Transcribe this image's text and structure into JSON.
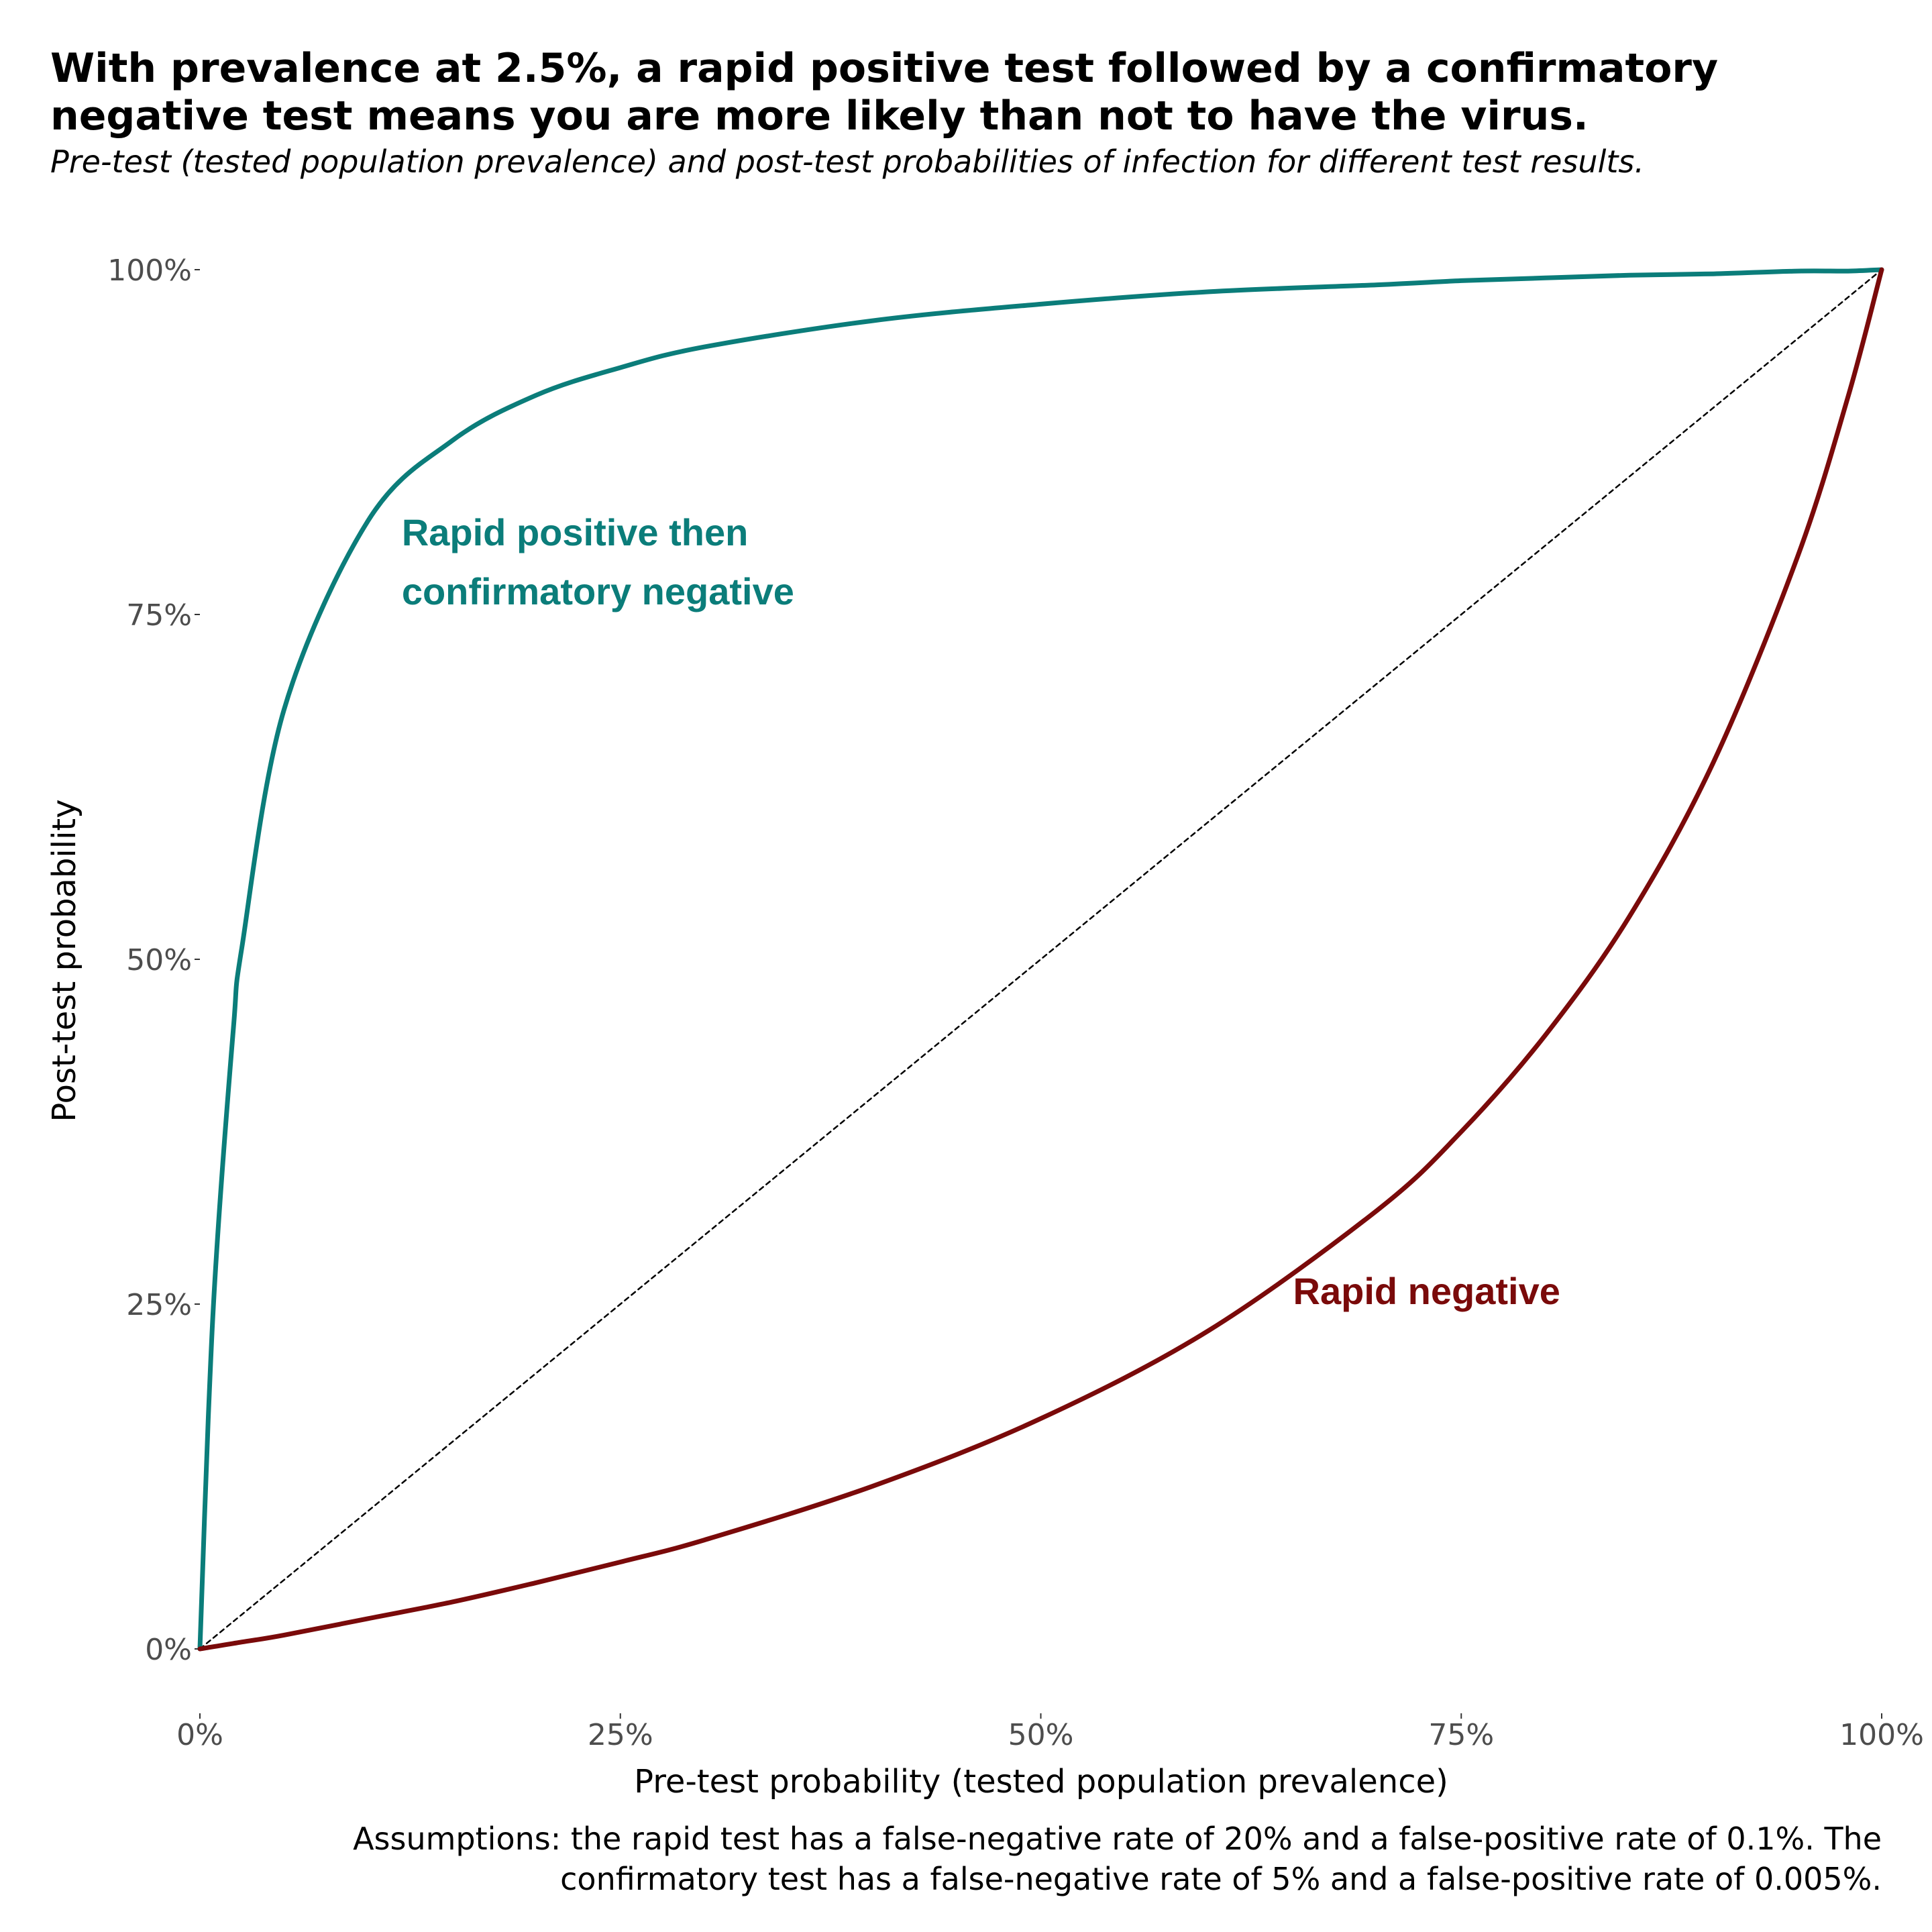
{
  "chart_data": {
    "type": "line",
    "title_lines": [
      "With prevalence at 2.5%, a rapid positive test followed by a confirmatory",
      "negative test means you are more likely than not to have the virus."
    ],
    "subtitle": "Pre-test (tested population prevalence) and post-test probabilities of infection for different test results.",
    "xlabel": "Pre-test probability (tested population prevalence)",
    "ylabel": "Post-test probability",
    "xlim": [
      0,
      1
    ],
    "ylim": [
      0,
      1
    ],
    "x_ticks": [
      0,
      0.25,
      0.5,
      0.75,
      1
    ],
    "x_tick_labels": [
      "0%",
      "25%",
      "50%",
      "75%",
      "100%"
    ],
    "y_ticks": [
      0,
      0.25,
      0.5,
      0.75,
      1
    ],
    "y_tick_labels": [
      "0%",
      "25%",
      "50%",
      "75%",
      "100%"
    ],
    "grid": false,
    "legend": "none (direct labels)",
    "x": [
      0,
      0.005,
      0.01,
      0.02,
      0.025,
      0.05,
      0.1,
      0.15,
      0.2,
      0.25,
      0.3,
      0.4,
      0.5,
      0.6,
      0.7,
      0.75,
      0.8,
      0.85,
      0.9,
      0.95,
      0.98,
      1
    ],
    "series": [
      {
        "name": "Rapid positive then confirmatory negative",
        "color": "#0b7d7a",
        "values": [
          0,
          0.168,
          0.289,
          0.451,
          0.509,
          0.681,
          0.818,
          0.876,
          0.909,
          0.929,
          0.944,
          0.963,
          0.975,
          0.984,
          0.989,
          0.992,
          0.994,
          0.996,
          0.997,
          0.999,
          0.999,
          1
        ]
      },
      {
        "name": "Rapid negative",
        "color": "#7a0a0a",
        "values": [
          0,
          0.001,
          0.002,
          0.004,
          0.005,
          0.01,
          0.022,
          0.034,
          0.048,
          0.063,
          0.079,
          0.118,
          0.167,
          0.231,
          0.318,
          0.375,
          0.445,
          0.531,
          0.643,
          0.792,
          0.908,
          1
        ]
      },
      {
        "name": "",
        "color": "#000000",
        "dashed": true,
        "values": [
          0,
          0.005,
          0.01,
          0.02,
          0.025,
          0.05,
          0.1,
          0.15,
          0.2,
          0.25,
          0.3,
          0.4,
          0.5,
          0.6,
          0.7,
          0.75,
          0.8,
          0.85,
          0.9,
          0.95,
          0.98,
          1
        ]
      }
    ],
    "annotations": [
      {
        "lines": [
          "Rapid positive then",
          "confirmatory negative"
        ],
        "x": 0.12,
        "y": 0.8,
        "color": "#0b7d7a"
      },
      {
        "lines": [
          "Rapid negative"
        ],
        "x": 0.65,
        "y": 0.25,
        "color": "#7a0a0a"
      }
    ],
    "caption_lines": [
      "Assumptions: the rapid test has a false-negative rate of 20% and a false-positive rate of 0.1%. The",
      "confirmatory test has a false-negative rate of 5% and a false-positive rate of 0.005%."
    ]
  }
}
